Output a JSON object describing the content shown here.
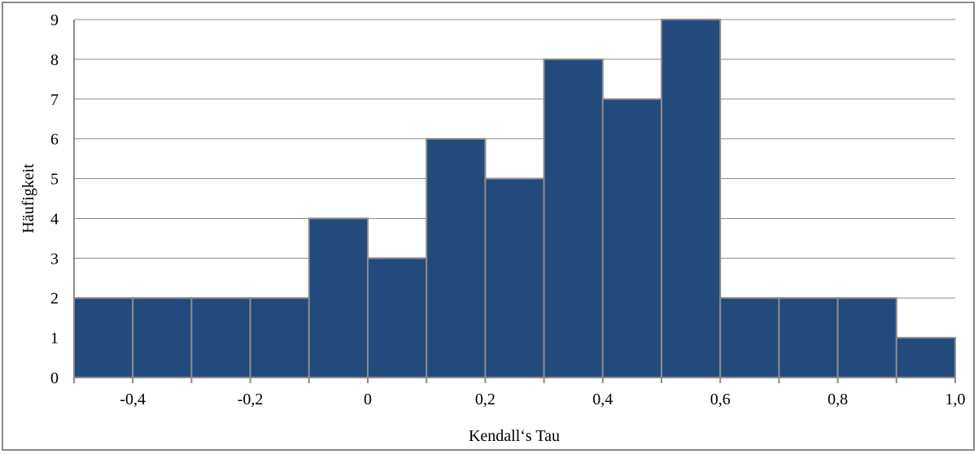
{
  "chart_data": {
    "type": "bar",
    "subtype": "histogram",
    "xlabel": "Kendall‘s Tau",
    "ylabel": "Häufigkeit",
    "bin_edges": [
      -0.5,
      -0.4,
      -0.3,
      -0.2,
      -0.1,
      0.0,
      0.1,
      0.2,
      0.3,
      0.4,
      0.5,
      0.6,
      0.7,
      0.8,
      0.9,
      1.0
    ],
    "values": [
      2,
      2,
      2,
      2,
      4,
      3,
      6,
      5,
      8,
      7,
      9,
      2,
      2,
      2,
      1
    ],
    "xlim": [
      -0.5,
      1.0
    ],
    "ylim": [
      0,
      9
    ],
    "x_ticks": [
      -0.4,
      -0.2,
      0.0,
      0.2,
      0.4,
      0.6,
      0.8,
      1.0
    ],
    "x_tick_labels": [
      "-0,4",
      "-0,2",
      "0",
      "0,2",
      "0,4",
      "0,6",
      "0,8",
      "1,0"
    ],
    "y_ticks": [
      0,
      1,
      2,
      3,
      4,
      5,
      6,
      7,
      8,
      9
    ],
    "y_tick_labels": [
      "0",
      "1",
      "2",
      "3",
      "4",
      "5",
      "6",
      "7",
      "8",
      "9"
    ],
    "grid": "horizontal",
    "legend": "none",
    "colors": {
      "bar_fill": "#234a7d",
      "bar_edge": "#8c8c8c",
      "gridline": "#8c8c8c",
      "axis": "#8c8c8c",
      "frame": "#8a8a8a"
    }
  }
}
